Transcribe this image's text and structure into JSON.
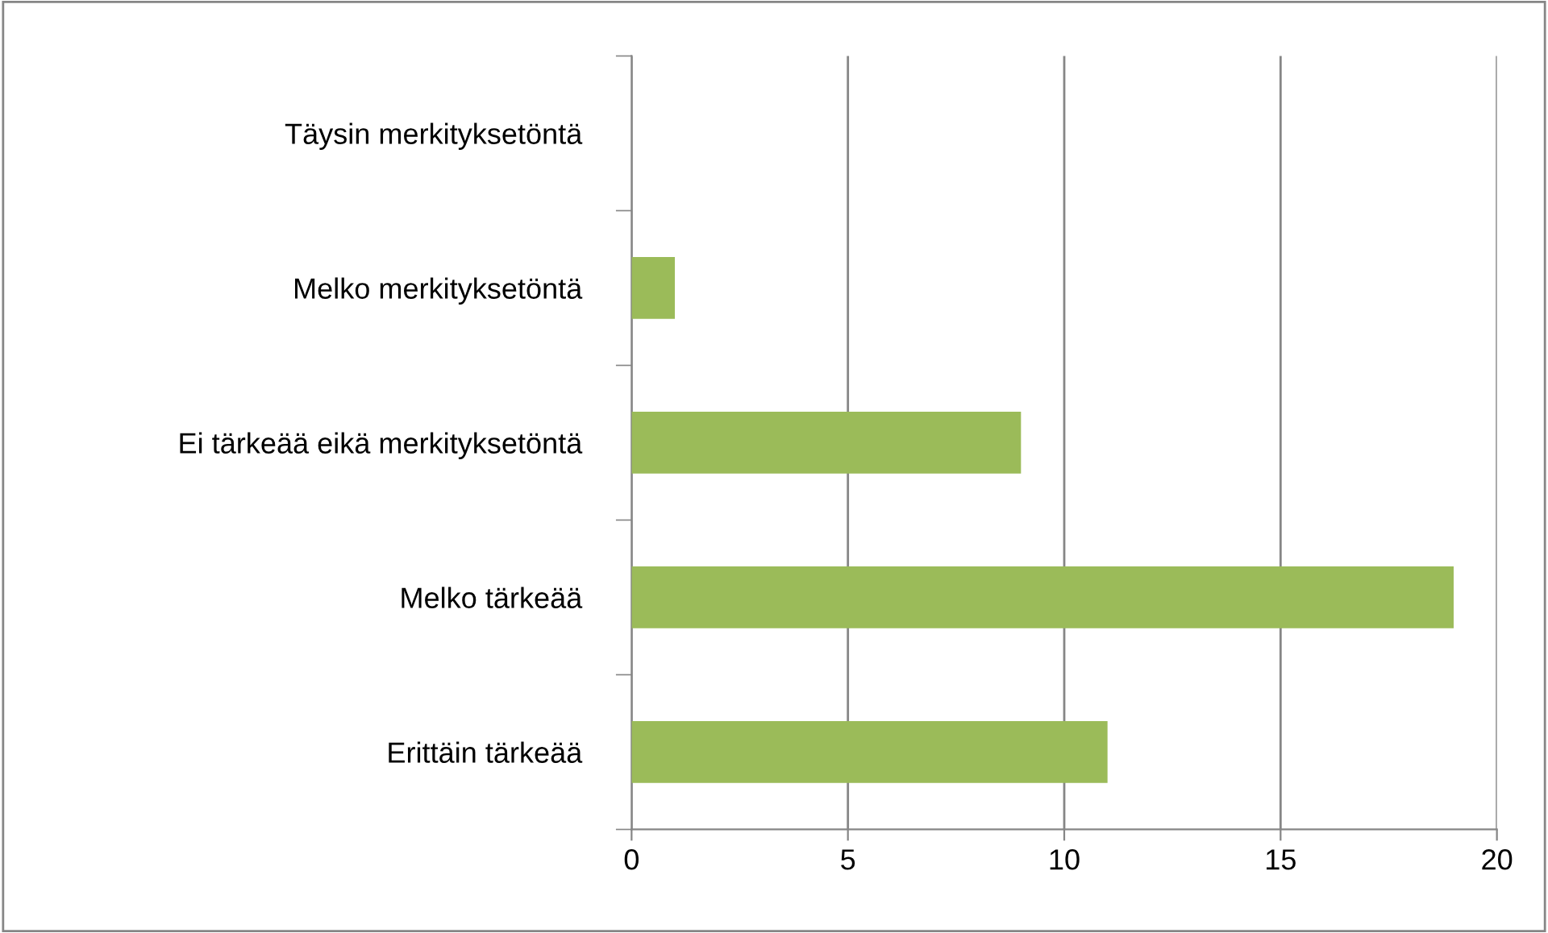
{
  "chart_data": {
    "type": "bar",
    "orientation": "horizontal",
    "categories": [
      "Täysin merkityksetöntä",
      "Melko merkityksetöntä",
      "Ei tärkeää eikä merkityksetöntä",
      "Melko tärkeää",
      "Erittäin tärkeää"
    ],
    "values": [
      0,
      1,
      9,
      19,
      11
    ],
    "color": "#9bbb59",
    "xlim": [
      0,
      20
    ],
    "xticks": [
      0,
      5,
      10,
      15,
      20
    ],
    "grid": "x",
    "legend": false
  }
}
